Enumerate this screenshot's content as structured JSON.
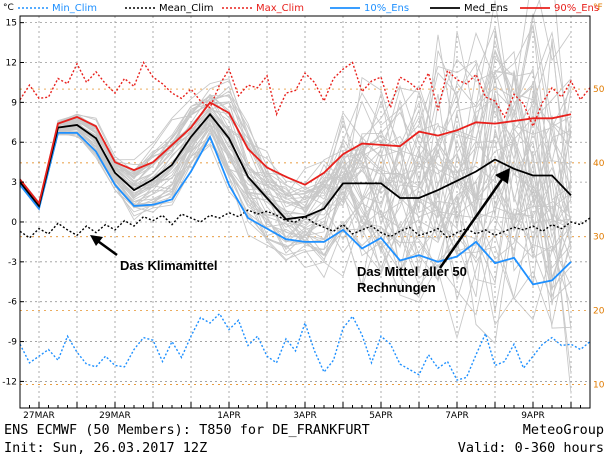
{
  "footer": {
    "line1_left": "ENS ECMWF (50 Members): T850 for DE_FRANKFURT",
    "line1_right": "MeteoGroup",
    "line2_left": "Init: Sun, 26.03.2017 12Z",
    "line2_right": "Valid: 0-360 hours"
  },
  "chart_data": {
    "type": "line",
    "title": "",
    "xlabel": "",
    "ylabel_left": "°C",
    "ylabel_right": "°F",
    "ylim": [
      -14,
      15.5
    ],
    "yticks": [
      -12,
      -9,
      -6,
      -3,
      0,
      3,
      6,
      9,
      12,
      15
    ],
    "right_ticks": [
      10,
      20,
      30,
      40,
      50
    ],
    "x_hours_range": [
      0,
      360
    ],
    "x_tick_labels": [
      {
        "label": "27MAR",
        "hour": 12
      },
      {
        "label": "29MAR",
        "hour": 60
      },
      {
        "label": "1APR",
        "hour": 132
      },
      {
        "label": "3APR",
        "hour": 180
      },
      {
        "label": "5APR",
        "hour": 228
      },
      {
        "label": "7APR",
        "hour": 276
      },
      {
        "label": "9APR",
        "hour": 324
      }
    ],
    "legend": [
      {
        "name": "Min_Clim",
        "color": "#1e90ff",
        "dash": "2,2"
      },
      {
        "name": "Mean_Clim",
        "color": "#000000",
        "dash": "2,2"
      },
      {
        "name": "Max_Clim",
        "color": "#e8201c",
        "dash": "2,2"
      },
      {
        "name": "10%_Ens",
        "color": "#1e90ff",
        "dash": ""
      },
      {
        "name": "Med_Ens",
        "color": "#000000",
        "dash": ""
      },
      {
        "name": "90%_Ens",
        "color": "#e8201c",
        "dash": ""
      }
    ],
    "colors": {
      "min_clim": "#1e90ff",
      "mean_clim": "#000000",
      "max_clim": "#e8201c",
      "members": "#c8c8c8",
      "right_axis": "#e07b00",
      "grid": "#999999"
    },
    "annotations": [
      {
        "text_lines": [
          "Das Klimamittel"
        ]
      },
      {
        "text_lines": [
          "Das Mittel aller 50",
          "Rechnungen"
        ]
      }
    ],
    "series": [
      {
        "name": "Min_Clim",
        "x": [
          0,
          6,
          12,
          18,
          24,
          30,
          36,
          42,
          48,
          54,
          60,
          66,
          72,
          78,
          84,
          90,
          96,
          102,
          108,
          114,
          120,
          126,
          132,
          138,
          144,
          150,
          156,
          162,
          168,
          174,
          180,
          186,
          192,
          198,
          204,
          210,
          216,
          222,
          228,
          234,
          240,
          246,
          252,
          258,
          264,
          270,
          276,
          282,
          288,
          294,
          300,
          306,
          312,
          318,
          324,
          330,
          336,
          342,
          348,
          354,
          360
        ],
        "values": [
          -9.2,
          -10.6,
          -10.1,
          -9.6,
          -10.4,
          -8.6,
          -9.8,
          -10.7,
          -10.9,
          -10.1,
          -10.8,
          -10.9,
          -9.6,
          -8.7,
          -8.9,
          -10.5,
          -9.0,
          -10.2,
          -8.6,
          -7.2,
          -7.6,
          -6.9,
          -8.1,
          -7.4,
          -9.3,
          -8.6,
          -10.1,
          -10.6,
          -8.8,
          -9.7,
          -7.6,
          -9.7,
          -11.3,
          -10.4,
          -8.0,
          -7.1,
          -8.5,
          -10.6,
          -8.6,
          -9.2,
          -10.7,
          -11.1,
          -11.5,
          -10.0,
          -11.0,
          -10.5,
          -11.9,
          -11.7,
          -10.0,
          -8.4,
          -10.8,
          -10.5,
          -9.2,
          -11.0,
          -10.1,
          -9.2,
          -8.7,
          -9.3,
          -9.2,
          -9.6,
          -9.0
        ]
      },
      {
        "name": "Mean_Clim",
        "x": [
          0,
          6,
          12,
          18,
          24,
          30,
          36,
          42,
          48,
          54,
          60,
          66,
          72,
          78,
          84,
          90,
          96,
          102,
          108,
          114,
          120,
          126,
          132,
          138,
          144,
          150,
          156,
          162,
          168,
          174,
          180,
          186,
          192,
          198,
          204,
          210,
          216,
          222,
          228,
          234,
          240,
          246,
          252,
          258,
          264,
          270,
          276,
          282,
          288,
          294,
          300,
          306,
          312,
          318,
          324,
          330,
          336,
          342,
          348,
          354,
          360
        ],
        "values": [
          -0.7,
          -1.2,
          -0.5,
          -0.9,
          -0.1,
          -0.6,
          -1.0,
          -0.3,
          -0.8,
          -0.2,
          -0.6,
          0.1,
          -0.3,
          0.4,
          0.1,
          0.5,
          -0.2,
          0.6,
          0.3,
          0.0,
          0.5,
          0.3,
          0.7,
          0.4,
          0.9,
          0.6,
          0.8,
          0.5,
          0.1,
          0.0,
          0.4,
          -0.1,
          -0.4,
          -0.7,
          -0.2,
          -0.9,
          -0.6,
          -0.3,
          -0.8,
          -1.1,
          -0.7,
          -0.4,
          -1.0,
          -0.8,
          -0.5,
          -1.2,
          -0.8,
          -0.5,
          -0.9,
          -0.6,
          -1.0,
          -0.7,
          -0.4,
          -0.6,
          -0.3,
          -0.7,
          -0.2,
          -0.5,
          0.0,
          -0.2,
          0.3
        ]
      },
      {
        "name": "Max_Clim",
        "x": [
          0,
          6,
          12,
          18,
          24,
          30,
          36,
          42,
          48,
          54,
          60,
          66,
          72,
          78,
          84,
          90,
          96,
          102,
          108,
          114,
          120,
          126,
          132,
          138,
          144,
          150,
          156,
          162,
          168,
          174,
          180,
          186,
          192,
          198,
          204,
          210,
          216,
          222,
          228,
          234,
          240,
          246,
          252,
          258,
          264,
          270,
          276,
          282,
          288,
          294,
          300,
          306,
          312,
          318,
          324,
          330,
          336,
          342,
          348,
          354,
          360
        ],
        "values": [
          9.2,
          10.3,
          9.3,
          9.4,
          10.8,
          10.4,
          11.9,
          10.5,
          11.3,
          10.4,
          9.7,
          10.8,
          10.2,
          12.0,
          10.9,
          10.4,
          9.7,
          9.3,
          10.0,
          9.1,
          8.6,
          10.3,
          11.5,
          9.5,
          10.3,
          10.1,
          11.0,
          8.1,
          9.7,
          9.9,
          11.2,
          10.5,
          9.1,
          10.8,
          11.5,
          12.0,
          9.8,
          10.6,
          10.9,
          8.6,
          10.9,
          10.5,
          9.9,
          11.2,
          8.4,
          11.4,
          10.7,
          10.4,
          11.1,
          9.4,
          9.1,
          7.9,
          9.6,
          8.9,
          7.2,
          9.0,
          10.1,
          9.4,
          10.6,
          9.2,
          10.1
        ]
      },
      {
        "name": "10%_Ens",
        "x": [
          0,
          12,
          24,
          36,
          48,
          60,
          72,
          84,
          96,
          108,
          120,
          132,
          144,
          156,
          168,
          180,
          192,
          204,
          216,
          228,
          240,
          252,
          264,
          276,
          288,
          300,
          312,
          324,
          336,
          348
        ],
        "values": [
          2.8,
          1.0,
          6.7,
          6.7,
          5.3,
          2.8,
          1.2,
          1.3,
          1.7,
          3.8,
          6.4,
          2.8,
          0.3,
          -0.5,
          -1.3,
          -1.5,
          -1.5,
          -0.6,
          -2.0,
          -1.2,
          -2.9,
          -2.5,
          -3.0,
          -2.6,
          -1.5,
          -3.1,
          -2.7,
          -4.7,
          -4.4,
          -3.0
        ]
      },
      {
        "name": "Med_Ens",
        "x": [
          0,
          12,
          24,
          36,
          48,
          60,
          72,
          84,
          96,
          108,
          120,
          132,
          144,
          156,
          168,
          180,
          192,
          204,
          216,
          228,
          240,
          252,
          264,
          276,
          288,
          300,
          312,
          324,
          336,
          348
        ],
        "values": [
          3.0,
          1.2,
          7.1,
          7.3,
          6.3,
          3.7,
          2.4,
          3.2,
          4.3,
          6.4,
          8.1,
          6.3,
          3.4,
          1.8,
          0.2,
          0.4,
          1.0,
          2.9,
          2.9,
          2.9,
          1.8,
          1.8,
          2.4,
          3.1,
          3.8,
          4.7,
          4.0,
          3.5,
          3.5,
          2.0
        ]
      },
      {
        "name": "90%_Ens",
        "x": [
          0,
          12,
          24,
          36,
          48,
          60,
          72,
          84,
          96,
          108,
          120,
          132,
          144,
          156,
          168,
          180,
          192,
          204,
          216,
          228,
          240,
          252,
          264,
          276,
          288,
          300,
          312,
          324,
          336,
          348
        ],
        "values": [
          3.2,
          1.4,
          7.4,
          7.9,
          7.2,
          4.5,
          3.9,
          4.5,
          5.8,
          7.1,
          9.0,
          8.2,
          5.5,
          4.1,
          3.4,
          2.8,
          3.7,
          5.1,
          5.9,
          5.8,
          5.7,
          6.8,
          6.5,
          6.9,
          7.5,
          7.4,
          7.6,
          7.8,
          7.8,
          8.1
        ]
      }
    ]
  }
}
